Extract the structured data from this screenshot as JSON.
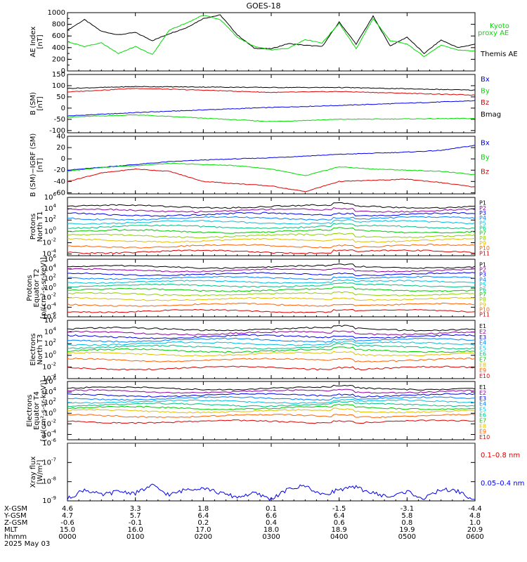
{
  "title": "GOES-18",
  "x_axis": {
    "row_labels": [
      "X-GSM",
      "Y-GSM",
      "Z-GSM",
      "MLT",
      "hhmm",
      "2025 May 03"
    ],
    "ticks": [
      {
        "time": "0000",
        "x_gsm": "4.6",
        "y_gsm": "4.7",
        "z_gsm": "-0.6",
        "mlt": "15.0"
      },
      {
        "time": "0100",
        "x_gsm": "3.3",
        "y_gsm": "5.7",
        "z_gsm": "-0.1",
        "mlt": "16.0"
      },
      {
        "time": "0200",
        "x_gsm": "1.8",
        "y_gsm": "6.4",
        "z_gsm": "0.2",
        "mlt": "17.0"
      },
      {
        "time": "0300",
        "x_gsm": "0.1",
        "y_gsm": "6.6",
        "z_gsm": "0.4",
        "mlt": "18.0"
      },
      {
        "time": "0400",
        "x_gsm": "-1.5",
        "y_gsm": "6.4",
        "z_gsm": "0.6",
        "mlt": "18.9"
      },
      {
        "time": "0500",
        "x_gsm": "-3.1",
        "y_gsm": "5.8",
        "z_gsm": "0.8",
        "mlt": "19.9"
      },
      {
        "time": "0600",
        "x_gsm": "-4.4",
        "y_gsm": "4.8",
        "z_gsm": "1.0",
        "mlt": "20.9"
      }
    ]
  },
  "chart_data": [
    {
      "type": "line",
      "id": "ae",
      "ylabel": [
        "AE Index",
        "[nT]"
      ],
      "ylim": [
        0,
        1000
      ],
      "yticks": [
        "0",
        "200",
        "400",
        "600",
        "800",
        "1000"
      ],
      "minor": 100,
      "x_hours": [
        0,
        0.25,
        0.5,
        0.75,
        1,
        1.25,
        1.5,
        1.75,
        2,
        2.25,
        2.5,
        2.75,
        3,
        3.25,
        3.5,
        3.75,
        4,
        4.25,
        4.5,
        4.75,
        5,
        5.25,
        5.5,
        5.75,
        6
      ],
      "series": [
        {
          "name": "Themis AE",
          "color": "#000000",
          "values": [
            700,
            880,
            680,
            620,
            660,
            520,
            640,
            740,
            900,
            960,
            620,
            390,
            380,
            470,
            440,
            420,
            840,
            460,
            940,
            430,
            580,
            300,
            530,
            400,
            460
          ]
        },
        {
          "name": "Kyoto proxy AE",
          "color": "#00dd00",
          "values": [
            500,
            420,
            480,
            300,
            420,
            280,
            700,
            820,
            960,
            880,
            580,
            420,
            360,
            390,
            540,
            480,
            820,
            380,
            900,
            520,
            460,
            250,
            440,
            360,
            340
          ]
        }
      ]
    },
    {
      "type": "line",
      "id": "b_sm",
      "ylabel": [
        "B (SM)",
        "[nT]"
      ],
      "ylim": [
        -110,
        150
      ],
      "yticks": [
        "-100",
        "-50",
        "0",
        "50",
        "100",
        "150"
      ],
      "ytick_values": [
        -100,
        -50,
        0,
        50,
        100,
        150
      ],
      "x_hours": [
        0,
        1,
        2,
        3,
        4,
        5,
        6
      ],
      "series": [
        {
          "name": "Bx",
          "color": "#0000ee",
          "values": [
            -35,
            -20,
            -8,
            3,
            12,
            22,
            33
          ]
        },
        {
          "name": "By",
          "color": "#00dd00",
          "values": [
            -40,
            -30,
            -45,
            -60,
            -50,
            -48,
            -46
          ]
        },
        {
          "name": "Bz",
          "color": "#dd0000",
          "values": [
            72,
            88,
            80,
            70,
            74,
            66,
            58
          ]
        },
        {
          "name": "Bmag",
          "color": "#000000",
          "values": [
            88,
            96,
            94,
            92,
            92,
            86,
            80
          ]
        }
      ]
    },
    {
      "type": "line",
      "id": "b_minus_igrf",
      "ylabel": [
        "B (SM)−IGRF (SM)",
        "[nT]"
      ],
      "ylim": [
        -62,
        40
      ],
      "yticks": [
        "-60",
        "-40",
        "-20",
        "0",
        "20",
        "40"
      ],
      "ytick_values": [
        -60,
        -40,
        -20,
        0,
        20,
        40
      ],
      "x_hours": [
        0,
        0.5,
        1,
        1.5,
        2,
        2.5,
        3,
        3.5,
        4,
        4.5,
        5,
        5.5,
        6
      ],
      "series": [
        {
          "name": "Bx",
          "color": "#0000ee",
          "values": [
            -20,
            -15,
            -10,
            -5,
            -2,
            0,
            2,
            5,
            8,
            10,
            12,
            15,
            24
          ]
        },
        {
          "name": "By",
          "color": "#00dd00",
          "values": [
            -22,
            -15,
            -12,
            -8,
            -10,
            -12,
            -18,
            -30,
            -14,
            -18,
            -20,
            -22,
            -28
          ]
        },
        {
          "name": "Bz",
          "color": "#dd0000",
          "values": [
            -40,
            -25,
            -18,
            -22,
            -40,
            -44,
            -48,
            -58,
            -40,
            -38,
            -36,
            -42,
            -50
          ]
        }
      ]
    },
    {
      "type": "line",
      "id": "protons_t1",
      "ylabel": [
        "Protons",
        "North T1"
      ],
      "log": true,
      "ylim_exp": [
        -4.3,
        6
      ],
      "yticks_exp": [
        -4,
        -2,
        0,
        2,
        4,
        6
      ],
      "legend": [
        "P1",
        "P2",
        "P3",
        "P4",
        "P5",
        "P6",
        "P7",
        "P8",
        "P9",
        "P10",
        "P11"
      ],
      "levels_exp": [
        4.4,
        3.7,
        3.0,
        2.3,
        1.6,
        0.8,
        0.0,
        -0.8,
        -1.6,
        -2.6,
        -3.6
      ],
      "colors": [
        "#000000",
        "#9000a0",
        "#0000ee",
        "#0080ff",
        "#00c0e0",
        "#00c080",
        "#00cc00",
        "#90d000",
        "#e0c000",
        "#ff6000",
        "#dd0000"
      ]
    },
    {
      "type": "line",
      "id": "protons_t2",
      "ylabel": [
        "Protons",
        "Equator T2",
        "[p/(cm²-s-sr-keV)]"
      ],
      "log": true,
      "ylim_exp": [
        -6,
        6
      ],
      "yticks_exp": [
        -6,
        -4,
        -2,
        0,
        2,
        4,
        6
      ],
      "legend": [
        "P1",
        "P2",
        "P3",
        "P4",
        "P5",
        "P6",
        "P7",
        "P8",
        "P9",
        "P10",
        "P11"
      ],
      "levels_exp": [
        4.4,
        3.7,
        2.9,
        2.1,
        1.3,
        0.5,
        -0.4,
        -1.3,
        -2.3,
        -3.5,
        -4.8
      ],
      "colors": [
        "#000000",
        "#9000a0",
        "#0000ee",
        "#0080ff",
        "#00c0e0",
        "#00c080",
        "#00cc00",
        "#90d000",
        "#e0c000",
        "#ff6000",
        "#dd0000"
      ]
    },
    {
      "type": "line",
      "id": "electrons_t3",
      "ylabel": [
        "Electrons",
        "North T3"
      ],
      "log": true,
      "ylim_exp": [
        -4,
        6
      ],
      "yticks_exp": [
        -4,
        -2,
        0,
        2,
        4,
        6
      ],
      "legend": [
        "E1",
        "E2",
        "E3",
        "E4",
        "E5",
        "E6",
        "E7",
        "E8",
        "E9",
        "E10"
      ],
      "levels_exp": [
        4.5,
        3.8,
        3.2,
        2.6,
        2.0,
        1.4,
        0.8,
        0.2,
        -0.8,
        -2.2
      ],
      "colors": [
        "#000000",
        "#9000a0",
        "#0000ee",
        "#0080ff",
        "#00c0e0",
        "#00c080",
        "#00cc00",
        "#e0c000",
        "#ff6000",
        "#dd0000"
      ]
    },
    {
      "type": "line",
      "id": "electrons_t4",
      "ylabel": [
        "Electrons",
        "Equator T4",
        "[e/(cm²-s-sr-keV)]"
      ],
      "log": true,
      "ylim_exp": [
        -5,
        6
      ],
      "yticks_exp": [
        -4,
        -2,
        0,
        2,
        4,
        6
      ],
      "legend": [
        "E1",
        "E2",
        "E3",
        "E4",
        "E5",
        "E6",
        "E7",
        "E8",
        "E9",
        "E10"
      ],
      "levels_exp": [
        4.7,
        4.1,
        3.4,
        2.8,
        2.2,
        1.6,
        1.0,
        0.4,
        -0.5,
        -1.6
      ],
      "colors": [
        "#000000",
        "#9000a0",
        "#0000ee",
        "#0080ff",
        "#00c0e0",
        "#00c080",
        "#00cc00",
        "#e0c000",
        "#ff6000",
        "#dd0000"
      ]
    },
    {
      "type": "line",
      "id": "xray",
      "ylabel": [
        "Xray flux",
        "[W/m²]"
      ],
      "log": true,
      "ylim_exp": [
        -9,
        -6
      ],
      "yticks_exp": [
        -9,
        -8,
        -7,
        -6
      ],
      "x_hours": [
        0,
        0.25,
        0.5,
        0.75,
        1,
        1.25,
        1.5,
        1.75,
        2,
        2.25,
        2.5,
        2.75,
        3,
        3.25,
        3.5,
        3.75,
        4,
        4.25,
        4.5,
        4.75,
        5,
        5.25,
        5.5,
        5.75,
        6
      ],
      "series": [
        {
          "name": "0.1–0.8 nm",
          "color": "#dd0000",
          "values_exp": [
            -6.0,
            -6.0,
            -6.0,
            -6.0,
            -6.0,
            -6.0,
            -6.0,
            -6.0,
            -6.0,
            -6.0,
            -6.0,
            -6.0,
            -6.0,
            -6.0,
            -6.0,
            -6.0,
            -6.0,
            -6.0,
            -6.0,
            -6.0,
            -6.0,
            -6.0,
            -6.0,
            -6.0,
            -6.0
          ]
        },
        {
          "name": "0.05–0.4 nm",
          "color": "#0000ee",
          "values_exp": [
            -8.9,
            -8.4,
            -8.7,
            -8.5,
            -8.6,
            -8.2,
            -8.7,
            -8.4,
            -8.3,
            -8.6,
            -8.8,
            -8.6,
            -8.9,
            -8.4,
            -8.2,
            -8.7,
            -8.4,
            -8.3,
            -8.6,
            -8.8,
            -8.5,
            -8.9,
            -8.4,
            -8.5,
            -9.0
          ]
        }
      ]
    }
  ]
}
